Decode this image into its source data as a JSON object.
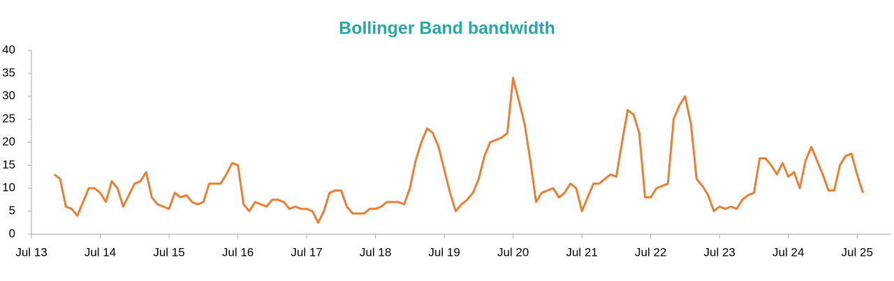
{
  "chart_data": {
    "type": "line",
    "title": "Bollinger Band bandwidth",
    "x": [
      "Nov 13",
      "Dec 13",
      "Jan 14",
      "Feb 14",
      "Mar 14",
      "Apr 14",
      "May 14",
      "Jun 14",
      "Jul 14",
      "Aug 14",
      "Sep 14",
      "Oct 14",
      "Nov 14",
      "Dec 14",
      "Jan 15",
      "Feb 15",
      "Mar 15",
      "Apr 15",
      "May 15",
      "Jun 15",
      "Jul 15",
      "Aug 15",
      "Sep 15",
      "Oct 15",
      "Nov 15",
      "Dec 15",
      "Jan 16",
      "Feb 16",
      "Mar 16",
      "Apr 16",
      "May 16",
      "Jun 16",
      "Jul 16",
      "Aug 16",
      "Sep 16",
      "Oct 16",
      "Nov 16",
      "Dec 16",
      "Jan 17",
      "Feb 17",
      "Mar 17",
      "Apr 17",
      "May 17",
      "Jun 17",
      "Jul 17",
      "Aug 17",
      "Sep 17",
      "Oct 17",
      "Nov 17",
      "Dec 17",
      "Jan 18",
      "Feb 18",
      "Mar 18",
      "Apr 18",
      "May 18",
      "Jun 18",
      "Jul 18",
      "Aug 18",
      "Sep 18",
      "Oct 18",
      "Nov 18",
      "Dec 18",
      "Jan 19",
      "Feb 19",
      "Mar 19",
      "Apr 19",
      "May 19",
      "Jun 19",
      "Jul 19",
      "Aug 19",
      "Sep 19",
      "Oct 19",
      "Nov 19",
      "Dec 19",
      "Jan 20",
      "Feb 20",
      "Mar 20",
      "Apr 20",
      "May 20",
      "Jun 20",
      "Jul 20",
      "Aug 20",
      "Sep 20",
      "Oct 20",
      "Nov 20",
      "Dec 20",
      "Jan 21",
      "Feb 21",
      "Mar 21",
      "Apr 21",
      "May 21",
      "Jun 21",
      "Jul 21",
      "Aug 21",
      "Sep 21",
      "Oct 21",
      "Nov 21",
      "Dec 21",
      "Jan 22",
      "Feb 22",
      "Mar 22",
      "Apr 22",
      "May 22",
      "Jun 22",
      "Jul 22",
      "Aug 22",
      "Sep 22",
      "Oct 22",
      "Nov 22",
      "Dec 22",
      "Jan 23",
      "Feb 23",
      "Mar 23",
      "Apr 23",
      "May 23",
      "Jun 23",
      "Jul 23",
      "Aug 23",
      "Sep 23",
      "Oct 23",
      "Nov 23",
      "Dec 23",
      "Jan 24",
      "Feb 24",
      "Mar 24",
      "Apr 24",
      "May 24",
      "Jun 24",
      "Jul 24",
      "Aug 24",
      "Sep 24",
      "Oct 24",
      "Nov 24",
      "Dec 24",
      "Jan 25",
      "Feb 25",
      "Mar 25",
      "Apr 25",
      "May 25",
      "Jun 25",
      "Jul 25",
      "Aug 25"
    ],
    "series": [
      {
        "color": "#ed7d31",
        "values": [
          13,
          12,
          6,
          5.5,
          4,
          7,
          10,
          10,
          9,
          7,
          11.5,
          10,
          6,
          8.5,
          11,
          11.5,
          13.5,
          8,
          6.5,
          6,
          5.5,
          9,
          8,
          8.5,
          7,
          6.5,
          7,
          11,
          11,
          11,
          13,
          15.5,
          15,
          6.5,
          5,
          7,
          6.5,
          6,
          7.5,
          7.5,
          7,
          5.5,
          6,
          5.5,
          5.5,
          5,
          2.5,
          5,
          9,
          9.5,
          9.5,
          6,
          4.5,
          4.5,
          4.5,
          5.5,
          5.5,
          6,
          7,
          7,
          7,
          6.5,
          10,
          16,
          20,
          23,
          22,
          19,
          14,
          9,
          5,
          6.5,
          7.5,
          9,
          12,
          17,
          20,
          20.5,
          21,
          22,
          34,
          29,
          24,
          16,
          7,
          9,
          9.5,
          10,
          8,
          9,
          11,
          10,
          5,
          8,
          11,
          11,
          12,
          13,
          12.5,
          20,
          27,
          26,
          22,
          8,
          8,
          10,
          10.5,
          11,
          25,
          28,
          30,
          24,
          12,
          10.5,
          8.5,
          5,
          6,
          5.5,
          6,
          5.5,
          7.5,
          8.5,
          9,
          16.5,
          16.5,
          15,
          13,
          15.5,
          12.5,
          13.5,
          10,
          16,
          19,
          16,
          13,
          9.5,
          9.5,
          15,
          17,
          17.5,
          13,
          9
        ]
      }
    ],
    "xticks": [
      "Jul 13",
      "Jul 14",
      "Jul 15",
      "Jul 16",
      "Jul 17",
      "Jul 18",
      "Jul 19",
      "Jul 20",
      "Jul 21",
      "Jul 22",
      "Jul 23",
      "Jul 24",
      "Jul 25"
    ],
    "ylim": [
      0,
      40
    ],
    "yticks": [
      0,
      5,
      10,
      15,
      20,
      25,
      30,
      35,
      40
    ],
    "grid": false
  }
}
